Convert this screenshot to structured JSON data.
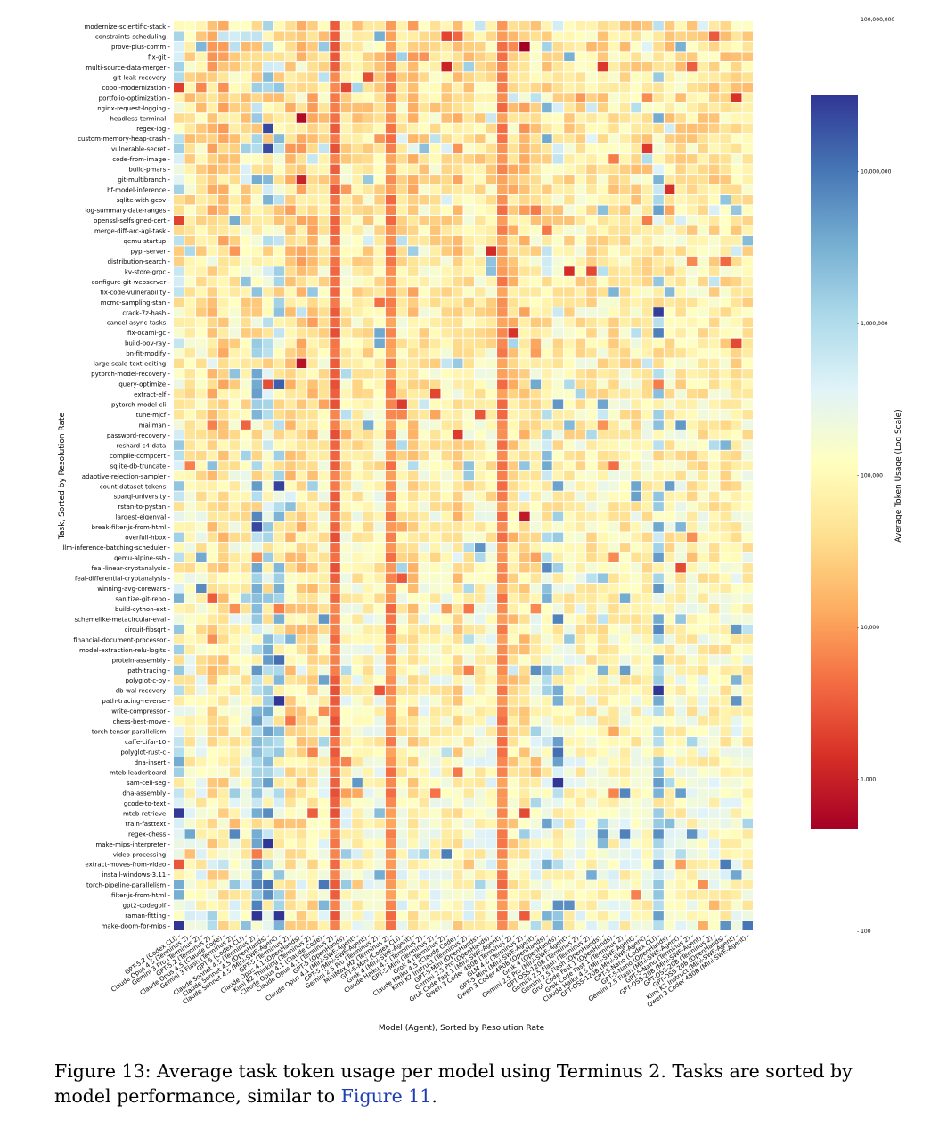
{
  "chart_data": {
    "type": "heatmap",
    "xlabel": "Model (Agent), Sorted by Resolution Rate",
    "ylabel": "Task, Sorted by Resolution Rate",
    "colorbar_label": "Average Token Usage (Log Scale)",
    "colorbar_ticks": [
      "100",
      "1,000",
      "10,000",
      "100,000",
      "1,000,000",
      "10,000,000",
      "100,000,000"
    ],
    "colorbar_range": [
      500,
      30000000
    ],
    "colormap": "RdYlBu",
    "tasks": [
      "modernize-scientific-stack",
      "constraints-scheduling",
      "prove-plus-comm",
      "fix-git",
      "multi-source-data-merger",
      "git-leak-recovery",
      "cobol-modernization",
      "portfolio-optimization",
      "nginx-request-logging",
      "headless-terminal",
      "regex-log",
      "custom-memory-heap-crash",
      "vulnerable-secret",
      "code-from-image",
      "build-pmars",
      "git-multibranch",
      "hf-model-inference",
      "sqlite-with-gcov",
      "log-summary-date-ranges",
      "openssl-selfsigned-cert",
      "merge-diff-arc-agi-task",
      "qemu-startup",
      "pypi-server",
      "distribution-search",
      "kv-store-grpc",
      "configure-git-webserver",
      "fix-code-vulnerability",
      "mcmc-sampling-stan",
      "crack-7z-hash",
      "cancel-async-tasks",
      "fix-ocaml-gc",
      "build-pov-ray",
      "bn-fit-modify",
      "large-scale-text-editing",
      "pytorch-model-recovery",
      "query-optimize",
      "extract-elf",
      "pytorch-model-cli",
      "tune-mjcf",
      "mailman",
      "password-recovery",
      "reshard-c4-data",
      "compile-compcert",
      "sqlite-db-truncate",
      "adaptive-rejection-sampler",
      "count-dataset-tokens",
      "sparql-university",
      "rstan-to-pystan",
      "largest-eigenval",
      "break-filter-js-from-html",
      "overfull-hbox",
      "llm-inference-batching-scheduler",
      "qemu-alpine-ssh",
      "feal-linear-cryptanalysis",
      "feal-differential-cryptanalysis",
      "winning-avg-corewars",
      "sanitize-git-repo",
      "build-cython-ext",
      "schemelike-metacircular-eval",
      "circuit-fibsqrt",
      "financial-document-processor",
      "model-extraction-relu-logits",
      "protein-assembly",
      "path-tracing",
      "polyglot-c-py",
      "db-wal-recovery",
      "path-tracing-reverse",
      "write-compressor",
      "chess-best-move",
      "torch-tensor-parallelism",
      "caffe-cifar-10",
      "polyglot-rust-c",
      "dna-insert",
      "mteb-leaderboard",
      "sam-cell-seg",
      "dna-assembly",
      "gcode-to-text",
      "mteb-retrieve",
      "train-fasttext",
      "regex-chess",
      "make-mips-interpreter",
      "video-processing",
      "extract-moves-from-video",
      "install-windows-3.11",
      "torch-pipeline-parallelism",
      "filter-js-from-html",
      "gpt2-codegolf",
      "raman-fitting",
      "make-doom-for-mips"
    ],
    "models": [
      "GPT-5.2 (Codex CLI)",
      "Claude Opus 4.5 (Terminus 2)",
      "Gemini 3 Pro (Terminus 2)",
      "GPT-5.2 (Terminus 2)",
      "Claude Opus 4.5 (Claude Code)",
      "Gemini 3 Flash (Terminus 2)",
      "GPT-5 (Codex CLI)",
      "Claude Sonnet 4.5 (Terminus 2)",
      "Claude Sonnet 4.5 (OpenHands)",
      "Claude Sonnet 4.5 (Mini-SWE-Agent)",
      "GPT-5 (Terminus 2)",
      "Claude Opus 4.1 (OpenHands)",
      "Kimi K2 Thinking (Terminus 2)",
      "Claude Opus 4.1 (Claude Code)",
      "Claude Opus 4.1 (Terminus 2)",
      "GPT-5 (OpenHands)",
      "Claude Opus 4.1 (Mini-SWE-Agent)",
      "GPT-5 (Mini-SWE-Agent)",
      "Gemini 2.5 Pro (Terminus 2)",
      "MiniMax M2 (Terminus 2)",
      "GPT-5-Mini (Codex CLI)",
      "Grok 4 (Mini-SWE-Agent)",
      "Claude Haiku 4.5 (Terminus 2)",
      "GPT-5-Mini (Terminus 2)",
      "Grok 4 (Terminus 2)",
      "Claude Haiku 4.5 (Claude Code)",
      "Kimi K2 Instruct (Terminus 2)",
      "GPT-5-Mini (OpenHands)",
      "Gemini 2.5 Pro (OpenHands)",
      "Grok Code Fast 1 (Mini-SWE-Agent)",
      "Qwen 3 Coder 480B (Terminus 2)",
      "GLM 4.6 (Terminus 2)",
      "GPT-5-Mini (Mini-SWE-Agent)",
      "Qwen 3 Coder 480B (OpenHands)",
      "Grok 4 (OpenHands)",
      "Gemini 2.5 Pro (Mini-SWE-Agent)",
      "GPT-OSS-120B (Terminus 2)",
      "Gemini 2.5 Flash (Terminus 2)",
      "Gemini 2.5 Flash (OpenHands)",
      "Grok Code Fast 1 (OpenHands)",
      "Grok Code Fast 1 (Terminus 2)",
      "Claude Haiku 4.5 (Mini-SWE-Agent)",
      "GPT-OSS-120B (Mini-SWE-Agent)",
      "GPT-5-Nano (Codex CLI)",
      "GPT-5-Nano (OpenHands)",
      "Gemini 2.5 Flash (Mini-SWE-Agent)",
      "GPT-5-Nano (Terminus 2)",
      "GPT-OSS-20B (Mini-SWE-Agent)",
      "GPT-OSS-20B (Terminus 2)",
      "GPT-OSS-20B (OpenHands)",
      "Kimi K2 Instruct (Mini-SWE-Agent)",
      "Qwen 3 Coder 480B (Mini-SWE-Agent)"
    ]
  },
  "caption": {
    "text": "Figure 13: Average task token usage per model using Terminus 2. Tasks are sorted by model performance, similar to ",
    "link": "Figure 11",
    "end": "."
  }
}
